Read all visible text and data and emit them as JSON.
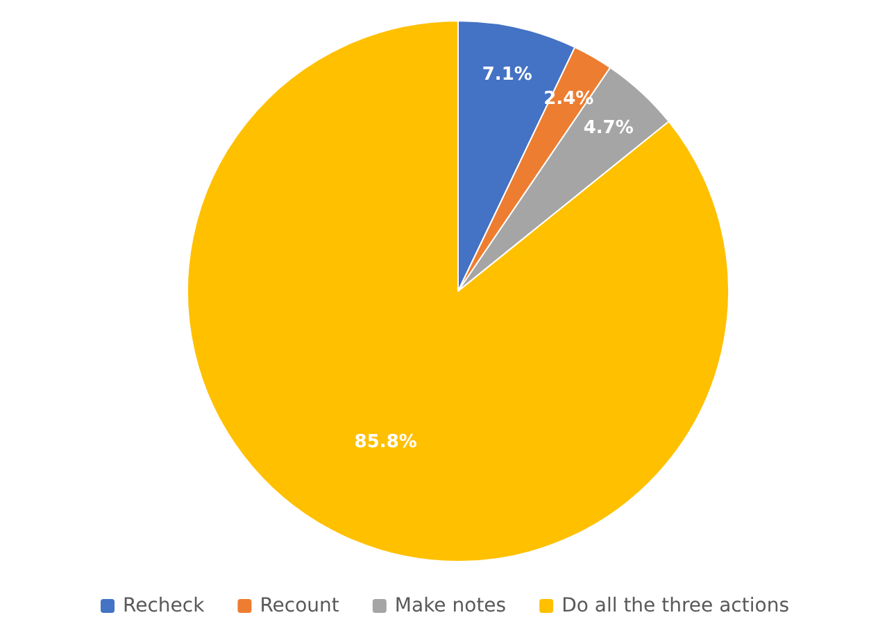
{
  "chart_data": {
    "type": "pie",
    "categories": [
      "Recheck",
      "Recount",
      "Make notes",
      "Do all the three actions"
    ],
    "values": [
      7.1,
      2.4,
      4.7,
      85.8
    ],
    "colors": [
      "#4472c4",
      "#ed7d31",
      "#a5a5a5",
      "#ffc000"
    ],
    "value_labels": [
      "7.1%",
      "2.4%",
      "4.7%",
      "85.8%"
    ],
    "legend": "bottom"
  }
}
